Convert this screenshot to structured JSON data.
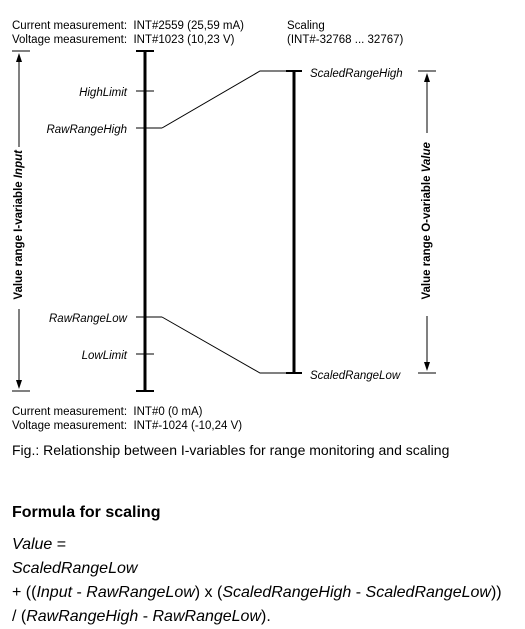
{
  "top_left": {
    "current": "Current measurement:  INT#2559 (25,59 mA)",
    "voltage": "Voltage measurement:  INT#1023 (10,23 V)"
  },
  "top_right": {
    "title": "Scaling",
    "range": "(INT#-32768 ... 32767)"
  },
  "bottom_left": {
    "current": "Current measurement:  INT#0 (0 mA)",
    "voltage": "Voltage measurement:  INT#-1024 (-10,24 V)"
  },
  "input_axis": {
    "label_prefix": "Value range I-variable ",
    "label_var": "Input",
    "ticks": {
      "high_limit": "HighLimit",
      "raw_range_high": "RawRangeHigh",
      "raw_range_low": "RawRangeLow",
      "low_limit": "LowLimit"
    }
  },
  "output_axis": {
    "label_prefix": "Value range O-variable ",
    "label_var": "Value",
    "ticks": {
      "scaled_range_high": "ScaledRangeHigh",
      "scaled_range_low": "ScaledRangeLow"
    }
  },
  "caption": "Fig.: Relationship between I-variables for range monitoring and scaling",
  "formula": {
    "heading": "Formula for scaling",
    "line1_var": "Value",
    "line1_eq": " =",
    "line2": "ScaledRangeLow",
    "line3_a": "+ ((",
    "line3_input": "Input",
    "line3_b": " - ",
    "line3_rrl": "RawRangeLow",
    "line3_c": ") x (",
    "line3_srh": "ScaledRangeHigh",
    "line3_d": " - ",
    "line3_srl": "ScaledRangeLow",
    "line3_e": "))",
    "line4_a": "/ (",
    "line4_rrh": "RawRangeHigh",
    "line4_b": " - ",
    "line4_rrl": "RawRangeLow",
    "line4_c": ")."
  }
}
